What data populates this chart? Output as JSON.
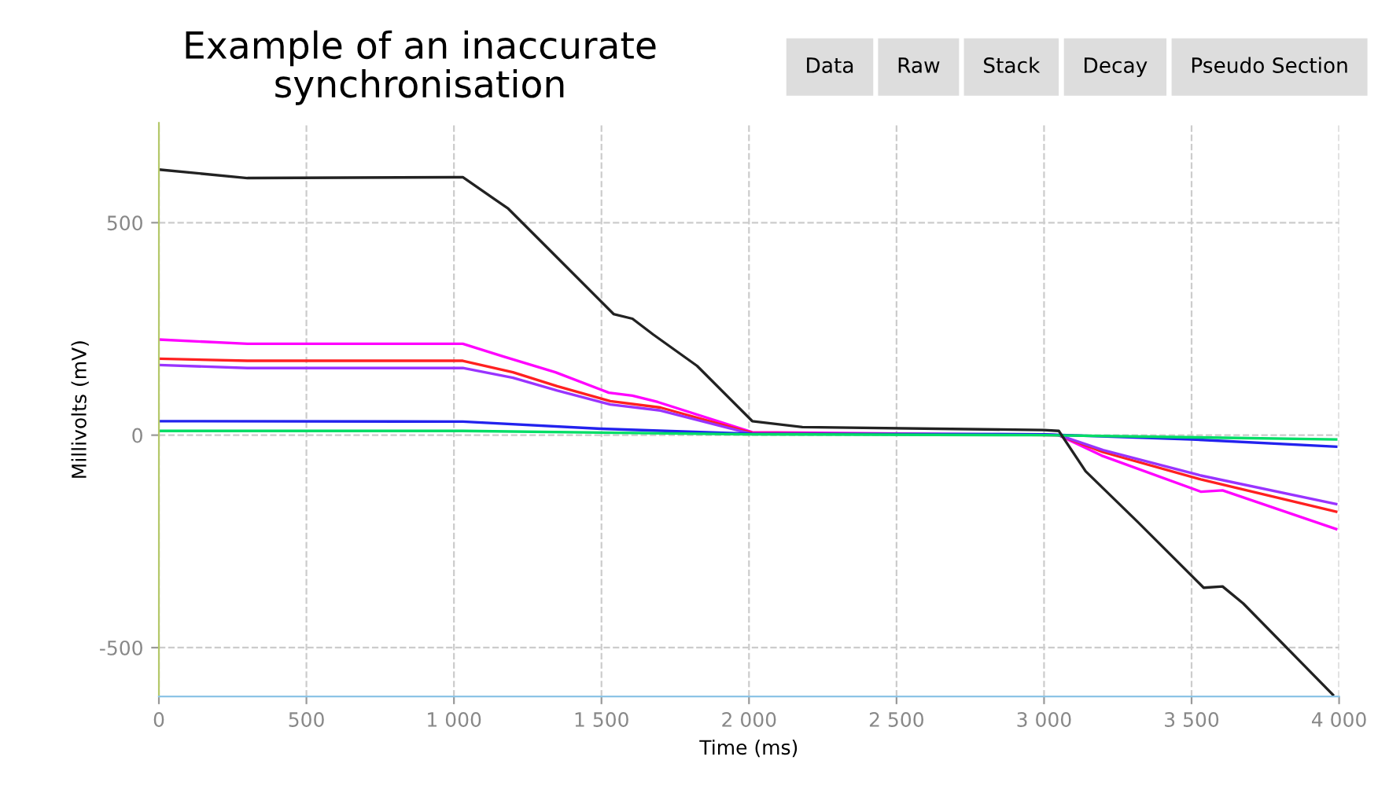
{
  "chart_data": {
    "type": "line",
    "title": "Example of an inaccurate\nsynchronisation",
    "xlabel": "Time (ms)",
    "ylabel": "Millivolts (mV)",
    "annotations": [
      "Data",
      "Raw",
      "Stack",
      "Decay",
      "Pseudo Section"
    ],
    "xlim": [
      0,
      4000
    ],
    "ylim": [
      -615,
      735
    ],
    "xticks": [
      0,
      500,
      {
        "value": 1000,
        "label": "1 000"
      },
      {
        "value": 1500,
        "label": "1 500"
      },
      {
        "value": 2000,
        "label": "2 000"
      },
      {
        "value": 2500,
        "label": "2 500"
      },
      {
        "value": 3000,
        "label": "3 000"
      },
      {
        "value": 3500,
        "label": "3 500"
      },
      {
        "value": 4000,
        "label": "4 000"
      }
    ],
    "yticks": [
      -500,
      0,
      500
    ],
    "grid": true,
    "line_style": "solid",
    "marker": "none",
    "series": [
      {
        "color": "#ff00ff",
        "x": [
          0,
          300,
          1030,
          1168,
          1344,
          1525,
          1605,
          1691,
          2011,
          3050,
          3195,
          3531,
          3605,
          3990
        ],
        "values": [
          225,
          215,
          215,
          185,
          148,
          100,
          93,
          78,
          7,
          0,
          -48,
          -133,
          -130,
          -221
        ]
      },
      {
        "color": "#ff2020",
        "x": [
          0,
          300,
          1030,
          1200,
          1350,
          1530,
          1700,
          2010,
          3050,
          3200,
          3531,
          3990
        ],
        "values": [
          180,
          175,
          175,
          148,
          115,
          80,
          65,
          5,
          0,
          -40,
          -104,
          -180
        ]
      },
      {
        "color": "#9933ff",
        "x": [
          0,
          300,
          1030,
          1200,
          1350,
          1530,
          1700,
          2010,
          3000,
          3050,
          3200,
          3531,
          3990
        ],
        "values": [
          165,
          158,
          158,
          135,
          105,
          72,
          58,
          3,
          2,
          0,
          -35,
          -95,
          -162
        ]
      },
      {
        "color": "#2222ee",
        "x": [
          0,
          1030,
          1500,
          2010,
          3000,
          3500,
          3990
        ],
        "values": [
          33,
          32,
          15,
          3,
          2,
          -10,
          -27
        ]
      },
      {
        "color": "#00dd66",
        "x": [
          0,
          1030,
          2000,
          3000,
          3990
        ],
        "values": [
          10,
          10,
          2,
          0,
          -10
        ]
      },
      {
        "color": "#222222",
        "x": [
          0,
          300,
          1000,
          1030,
          1184,
          1344,
          1541,
          1605,
          1675,
          1824,
          2011,
          2181,
          3000,
          3050,
          3141,
          3317,
          3541,
          3605,
          3675,
          3979
        ],
        "values": [
          625,
          605,
          607,
          607,
          533,
          422,
          285,
          274,
          237,
          163,
          33,
          19,
          12,
          10,
          -85,
          -204,
          -359,
          -356,
          -396,
          -611
        ]
      }
    ]
  }
}
